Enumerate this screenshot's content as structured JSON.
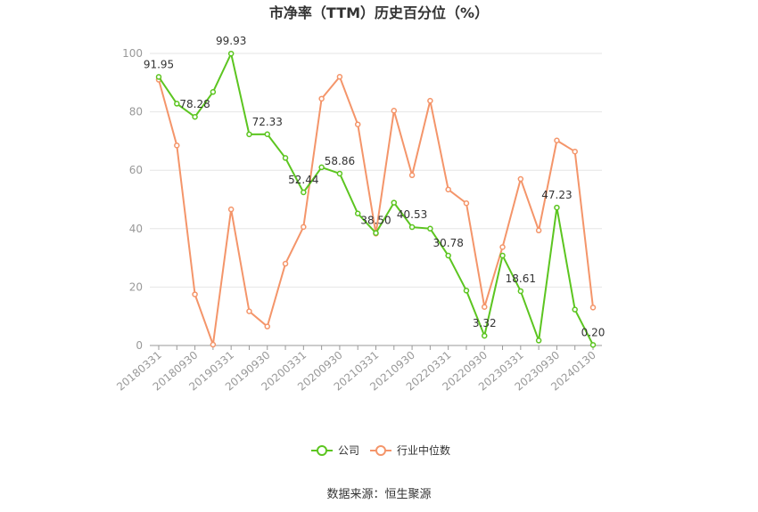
{
  "chart_data": {
    "type": "line",
    "title": "市净率（TTM）历史百分位（%）",
    "source": "数据来源：恒生聚源",
    "ylim": [
      0,
      100
    ],
    "y_ticks": [
      0,
      20,
      40,
      60,
      80,
      100
    ],
    "x_tick_labels": [
      "20180331",
      "20180930",
      "20190331",
      "20190930",
      "20200331",
      "20200930",
      "20210331",
      "20210930",
      "20220331",
      "20220930",
      "20230331",
      "20230930",
      "20240130"
    ],
    "grid": "horizontal",
    "legend_position": "bottom-center",
    "series": [
      {
        "name": "公司",
        "color": "#5cc520",
        "values": [
          91.95,
          82.8,
          78.28,
          86.8,
          99.93,
          72.3,
          72.33,
          64.2,
          52.44,
          61.0,
          58.86,
          45.2,
          38.5,
          48.9,
          40.53,
          40.0,
          30.78,
          18.8,
          3.32,
          30.8,
          18.61,
          1.7,
          47.23,
          12.3,
          0.2
        ],
        "labels": {
          "0": "91.95",
          "2": "78.28",
          "4": "99.93",
          "6": "72.33",
          "8": "52.44",
          "10": "58.86",
          "12": "38.50",
          "14": "40.53",
          "16": "30.78",
          "18": "3.32",
          "20": "18.61",
          "22": "47.23",
          "24": "0.20"
        }
      },
      {
        "name": "行业中位数",
        "color": "#f4956a",
        "values": [
          91.0,
          68.5,
          17.5,
          0.3,
          46.6,
          11.7,
          6.5,
          28.0,
          40.6,
          84.5,
          92.0,
          75.7,
          38.3,
          80.4,
          58.3,
          83.8,
          53.4,
          48.7,
          13.2,
          33.7,
          57.0,
          39.4,
          70.2,
          66.4,
          13.0
        ]
      }
    ]
  }
}
